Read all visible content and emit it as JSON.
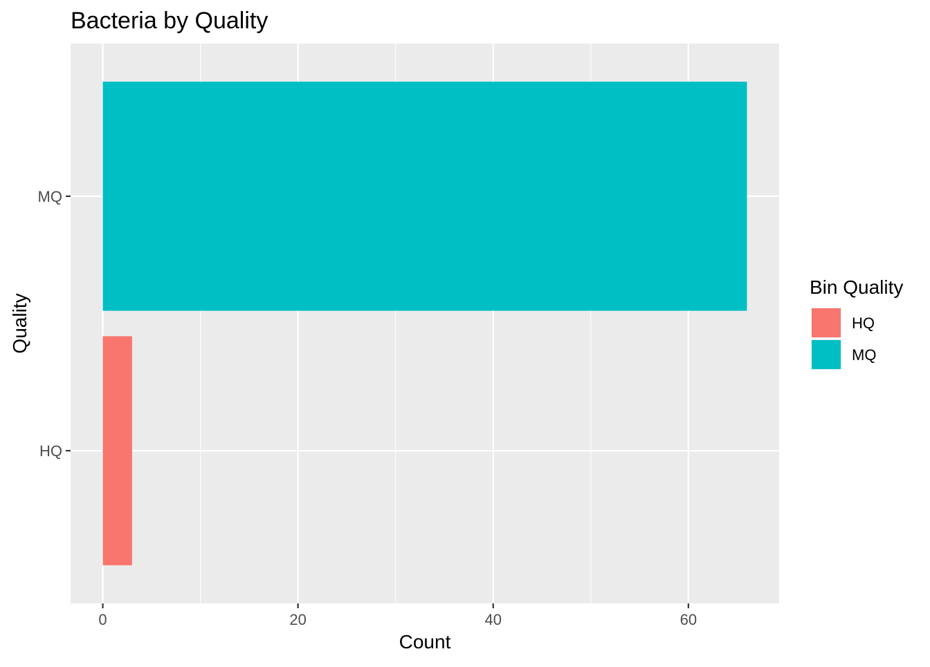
{
  "chart_data": {
    "type": "bar",
    "orientation": "horizontal",
    "title": "Bacteria by Quality",
    "xlabel": "Count",
    "ylabel": "Quality",
    "categories": [
      "HQ",
      "MQ"
    ],
    "values": [
      3,
      66
    ],
    "xlim": [
      -3.3,
      69.3
    ],
    "x_ticks": [
      0,
      20,
      40,
      60
    ],
    "grid": true,
    "legend": {
      "title": "Bin Quality",
      "position": "right",
      "entries": [
        {
          "label": "HQ",
          "color": "#F8766D"
        },
        {
          "label": "MQ",
          "color": "#00BFC4"
        }
      ]
    },
    "colors": {
      "panel_background": "#EBEBEB",
      "grid": "#FFFFFF",
      "tick": "#333333",
      "HQ": "#F8766D",
      "MQ": "#00BFC4"
    }
  }
}
